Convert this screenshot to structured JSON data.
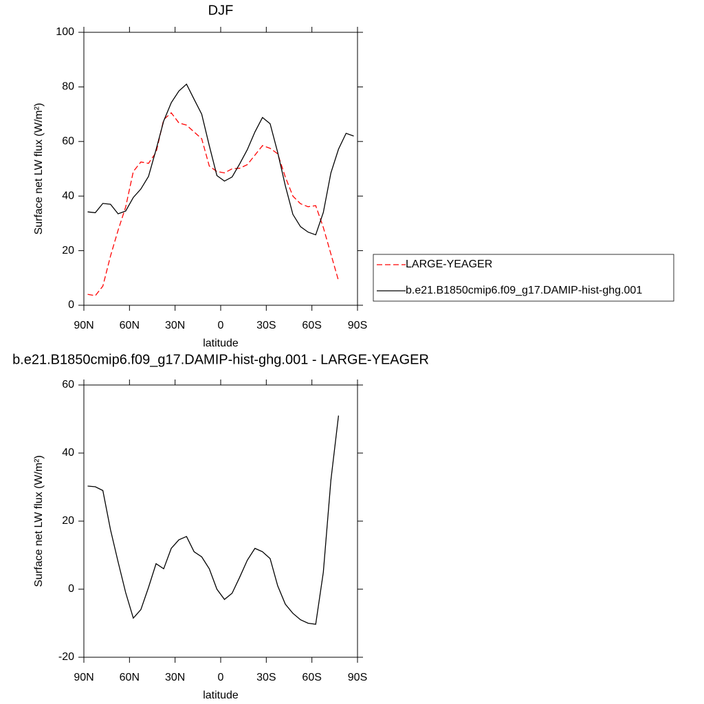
{
  "chart_data": [
    {
      "type": "line",
      "title": "DJF",
      "x_label": "latitude",
      "y_label": "Surface net LW flux (W/m²)",
      "x": [
        87.5,
        82.5,
        77.5,
        72.5,
        67.5,
        62.5,
        57.5,
        52.5,
        47.5,
        42.5,
        37.5,
        32.5,
        27.5,
        22.5,
        17.5,
        12.5,
        7.5,
        2.5,
        -2.5,
        -7.5,
        -12.5,
        -17.5,
        -22.5,
        -27.5,
        -32.5,
        -37.5,
        -42.5,
        -47.5,
        -52.5,
        -57.5,
        -62.5,
        -67.5,
        -72.5,
        -77.5,
        -82.5,
        -87.5
      ],
      "series": [
        {
          "name": "LARGE-YEAGER",
          "color": "#ff0000",
          "dash": true,
          "values": [
            4,
            3.5,
            7,
            18,
            27.5,
            36,
            49,
            52.5,
            52,
            56,
            68,
            70.5,
            66.8,
            66,
            63.5,
            61,
            51,
            49,
            48.5,
            50,
            50.2,
            51.5,
            55,
            58.5,
            57.5,
            55.5,
            47,
            40,
            37.2,
            36.1,
            36.5,
            28.5,
            18.8,
            9,
            null,
            null
          ]
        },
        {
          "name": "b.e21.B1850cmip6.f09_g17.DAMIP-hist-ghg.001",
          "color": "#000000",
          "dash": false,
          "values": [
            34.2,
            33.9,
            37.3,
            37,
            33.5,
            34.5,
            39.5,
            42.6,
            47.2,
            57,
            67.5,
            74.2,
            78.5,
            81,
            75.5,
            70,
            58.5,
            47.5,
            45.5,
            47,
            51.8,
            57,
            63.5,
            68.8,
            66.5,
            56,
            43.8,
            33.3,
            28.8,
            26.8,
            25.8,
            34,
            48.5,
            57.2,
            63,
            62
          ]
        }
      ],
      "xlim": [
        90,
        -90
      ],
      "xticks": [
        {
          "value": 90,
          "label": "90N"
        },
        {
          "value": 60,
          "label": "60N"
        },
        {
          "value": 30,
          "label": "30N"
        },
        0,
        {
          "value": -30,
          "label": "30S"
        },
        {
          "value": -60,
          "label": "60S"
        },
        {
          "value": -90,
          "label": "90S"
        }
      ],
      "ylim": [
        0,
        100
      ],
      "yticks": [
        0,
        20,
        40,
        60,
        80,
        100
      ],
      "legend": "outside-right"
    },
    {
      "type": "line",
      "title": "b.e21.B1850cmip6.f09_g17.DAMIP-hist-ghg.001 - LARGE-YEAGER",
      "x_label": "latitude",
      "y_label": "Surface net LW flux (W/m²)",
      "x": [
        87.5,
        82.5,
        77.5,
        72.5,
        67.5,
        62.5,
        57.5,
        52.5,
        47.5,
        42.5,
        37.5,
        32.5,
        27.5,
        22.5,
        17.5,
        12.5,
        7.5,
        2.5,
        -2.5,
        -7.5,
        -12.5,
        -17.5,
        -22.5,
        -27.5,
        -32.5,
        -37.5,
        -42.5,
        -47.5,
        -52.5,
        -57.5,
        -62.5,
        -67.5,
        -72.5,
        -77.5,
        -82.5,
        -87.5
      ],
      "series": [
        {
          "color": "#000000",
          "dash": false,
          "values": [
            30.3,
            30.1,
            29,
            17.5,
            8,
            -1,
            -8.5,
            -6,
            0.5,
            7.5,
            6,
            12,
            14.5,
            15.5,
            11,
            9.5,
            6,
            0,
            -3,
            -1.2,
            3.5,
            8.5,
            12,
            11,
            9,
            1,
            -4.4,
            -7.1,
            -9,
            -10,
            -10.3,
            5,
            32,
            51,
            null,
            null
          ]
        }
      ],
      "xlim": [
        90,
        -90
      ],
      "xticks": [
        {
          "value": 90,
          "label": "90N"
        },
        {
          "value": 60,
          "label": "60N"
        },
        {
          "value": 30,
          "label": "30N"
        },
        0,
        {
          "value": -30,
          "label": "30S"
        },
        {
          "value": -60,
          "label": "60S"
        },
        {
          "value": -90,
          "label": "90S"
        }
      ],
      "ylim": [
        -20,
        60
      ],
      "yticks": [
        -20,
        0,
        20,
        40,
        60
      ]
    }
  ]
}
